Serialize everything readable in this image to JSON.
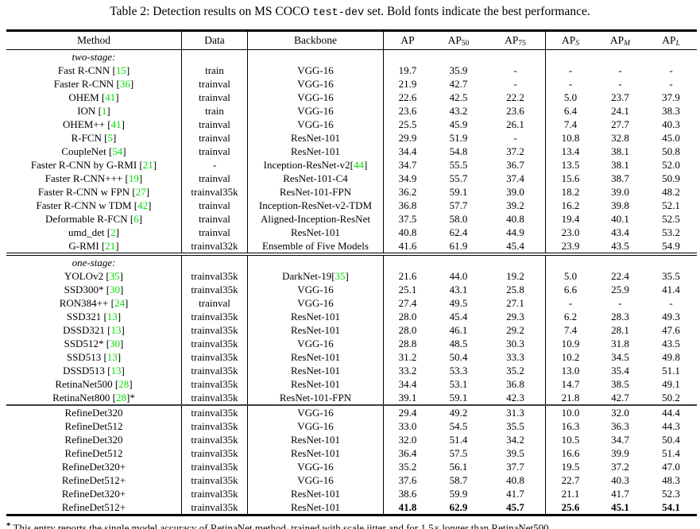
{
  "title": {
    "prefix": "Table 2: Detection results on MS COCO ",
    "code": "test-dev",
    "suffix": " set. Bold fonts indicate the best performance."
  },
  "accent_colors": {
    "citation_green": "#00DD00"
  },
  "table": {
    "columns": [
      {
        "label": "Method"
      },
      {
        "label": "Data"
      },
      {
        "label": "Backbone"
      },
      {
        "label": "AP"
      },
      {
        "label": "AP",
        "sub": "50"
      },
      {
        "label": "AP",
        "sub": "75"
      },
      {
        "label": "AP",
        "sub": "S",
        "italic_sub": true
      },
      {
        "label": "AP",
        "sub": "M",
        "italic_sub": true
      },
      {
        "label": "AP",
        "sub": "L",
        "italic_sub": true
      }
    ],
    "sections": [
      {
        "label": "two-stage:",
        "separator": "none",
        "rows": [
          {
            "method": "Fast R-CNN",
            "cite": "15",
            "data": "train",
            "backbone": "VGG-16",
            "values": [
              "19.7",
              "35.9",
              "-",
              "-",
              "-",
              "-"
            ]
          },
          {
            "method": "Faster R-CNN",
            "cite": "36",
            "data": "trainval",
            "backbone": "VGG-16",
            "values": [
              "21.9",
              "42.7",
              "-",
              "-",
              "-",
              "-"
            ]
          },
          {
            "method": "OHEM",
            "cite": "41",
            "data": "trainval",
            "backbone": "VGG-16",
            "values": [
              "22.6",
              "42.5",
              "22.2",
              "5.0",
              "23.7",
              "37.9"
            ]
          },
          {
            "method": "ION",
            "cite": "1",
            "data": "train",
            "backbone": "VGG-16",
            "values": [
              "23.6",
              "43.2",
              "23.6",
              "6.4",
              "24.1",
              "38.3"
            ]
          },
          {
            "method": "OHEM++",
            "cite": "41",
            "data": "trainval",
            "backbone": "VGG-16",
            "values": [
              "25.5",
              "45.9",
              "26.1",
              "7.4",
              "27.7",
              "40.3"
            ]
          },
          {
            "method": "R-FCN",
            "cite": "5",
            "data": "trainval",
            "backbone": "ResNet-101",
            "values": [
              "29.9",
              "51.9",
              "-",
              "10.8",
              "32.8",
              "45.0"
            ]
          },
          {
            "method": "CoupleNet",
            "cite": "54",
            "data": "trainval",
            "backbone": "ResNet-101",
            "values": [
              "34.4",
              "54.8",
              "37.2",
              "13.4",
              "38.1",
              "50.8"
            ]
          },
          {
            "method": "Faster R-CNN by G-RMI",
            "cite": "21",
            "data": "-",
            "backbone": "Inception-ResNet-v2",
            "backbone_cite": "44",
            "values": [
              "34.7",
              "55.5",
              "36.7",
              "13.5",
              "38.1",
              "52.0"
            ]
          },
          {
            "method": "Faster R-CNN+++",
            "cite": "19",
            "data": "trainval",
            "backbone": "ResNet-101-C4",
            "values": [
              "34.9",
              "55.7",
              "37.4",
              "15.6",
              "38.7",
              "50.9"
            ]
          },
          {
            "method": "Faster R-CNN w FPN",
            "cite": "27",
            "data": "trainval35k",
            "backbone": "ResNet-101-FPN",
            "values": [
              "36.2",
              "59.1",
              "39.0",
              "18.2",
              "39.0",
              "48.2"
            ]
          },
          {
            "method": "Faster R-CNN w TDM",
            "cite": "42",
            "data": "trainval",
            "backbone": "Inception-ResNet-v2-TDM",
            "values": [
              "36.8",
              "57.7",
              "39.2",
              "16.2",
              "39.8",
              "52.1"
            ]
          },
          {
            "method": "Deformable R-FCN",
            "cite": "6",
            "data": "trainval",
            "backbone": "Aligned-Inception-ResNet",
            "values": [
              "37.5",
              "58.0",
              "40.8",
              "19.4",
              "40.1",
              "52.5"
            ]
          },
          {
            "method": "umd_det",
            "cite": "2",
            "data": "trainval",
            "backbone": "ResNet-101",
            "values": [
              "40.8",
              "62.4",
              "44.9",
              "23.0",
              "43.4",
              "53.2"
            ]
          },
          {
            "method": "G-RMI",
            "cite": "21",
            "data": "trainval32k",
            "backbone": "Ensemble of Five Models",
            "values": [
              "41.6",
              "61.9",
              "45.4",
              "23.9",
              "43.5",
              "54.9"
            ]
          }
        ]
      },
      {
        "label": "one-stage:",
        "separator": "double",
        "rows": [
          {
            "method": "YOLOv2",
            "cite": "35",
            "data": "trainval35k",
            "backbone": "DarkNet-19",
            "backbone_cite": "35",
            "values": [
              "21.6",
              "44.0",
              "19.2",
              "5.0",
              "22.4",
              "35.5"
            ]
          },
          {
            "method": "SSD300*",
            "cite": "30",
            "data": "trainval35k",
            "backbone": "VGG-16",
            "values": [
              "25.1",
              "43.1",
              "25.8",
              "6.6",
              "25.9",
              "41.4"
            ]
          },
          {
            "method": "RON384++",
            "cite": "24",
            "data": "trainval",
            "backbone": "VGG-16",
            "values": [
              "27.4",
              "49.5",
              "27.1",
              "-",
              "-",
              "-"
            ]
          },
          {
            "method": "SSD321",
            "cite": "13",
            "data": "trainval35k",
            "backbone": "ResNet-101",
            "values": [
              "28.0",
              "45.4",
              "29.3",
              "6.2",
              "28.3",
              "49.3"
            ]
          },
          {
            "method": "DSSD321",
            "cite": "13",
            "data": "trainval35k",
            "backbone": "ResNet-101",
            "values": [
              "28.0",
              "46.1",
              "29.2",
              "7.4",
              "28.1",
              "47.6"
            ]
          },
          {
            "method": "SSD512*",
            "cite": "30",
            "data": "trainval35k",
            "backbone": "VGG-16",
            "values": [
              "28.8",
              "48.5",
              "30.3",
              "10.9",
              "31.8",
              "43.5"
            ]
          },
          {
            "method": "SSD513",
            "cite": "13",
            "data": "trainval35k",
            "backbone": "ResNet-101",
            "values": [
              "31.2",
              "50.4",
              "33.3",
              "10.2",
              "34.5",
              "49.8"
            ]
          },
          {
            "method": "DSSD513",
            "cite": "13",
            "data": "trainval35k",
            "backbone": "ResNet-101",
            "values": [
              "33.2",
              "53.3",
              "35.2",
              "13.0",
              "35.4",
              "51.1"
            ]
          },
          {
            "method": "RetinaNet500",
            "cite": "28",
            "data": "trainval35k",
            "backbone": "ResNet-101",
            "values": [
              "34.4",
              "53.1",
              "36.8",
              "14.7",
              "38.5",
              "49.1"
            ]
          },
          {
            "method": "RetinaNet800",
            "cite": "28",
            "star": true,
            "data": "trainval35k",
            "backbone": "ResNet-101-FPN",
            "values": [
              "39.1",
              "59.1",
              "42.3",
              "21.8",
              "42.7",
              "50.2"
            ]
          }
        ]
      },
      {
        "label": null,
        "separator": "single",
        "rows": [
          {
            "method": "RefineDet320",
            "data": "trainval35k",
            "backbone": "VGG-16",
            "values": [
              "29.4",
              "49.2",
              "31.3",
              "10.0",
              "32.0",
              "44.4"
            ]
          },
          {
            "method": "RefineDet512",
            "data": "trainval35k",
            "backbone": "VGG-16",
            "values": [
              "33.0",
              "54.5",
              "35.5",
              "16.3",
              "36.3",
              "44.3"
            ]
          },
          {
            "method": "RefineDet320",
            "data": "trainval35k",
            "backbone": "ResNet-101",
            "values": [
              "32.0",
              "51.4",
              "34.2",
              "10.5",
              "34.7",
              "50.4"
            ]
          },
          {
            "method": "RefineDet512",
            "data": "trainval35k",
            "backbone": "ResNet-101",
            "values": [
              "36.4",
              "57.5",
              "39.5",
              "16.6",
              "39.9",
              "51.4"
            ]
          },
          {
            "method": "RefineDet320+",
            "data": "trainval35k",
            "backbone": "VGG-16",
            "values": [
              "35.2",
              "56.1",
              "37.7",
              "19.5",
              "37.2",
              "47.0"
            ]
          },
          {
            "method": "RefineDet512+",
            "data": "trainval35k",
            "backbone": "VGG-16",
            "values": [
              "37.6",
              "58.7",
              "40.8",
              "22.7",
              "40.3",
              "48.3"
            ]
          },
          {
            "method": "RefineDet320+",
            "data": "trainval35k",
            "backbone": "ResNet-101",
            "values": [
              "38.6",
              "59.9",
              "41.7",
              "21.1",
              "41.7",
              "52.3"
            ]
          },
          {
            "method": "RefineDet512+",
            "data": "trainval35k",
            "backbone": "ResNet-101",
            "values": [
              "41.8",
              "62.9",
              "45.7",
              "25.6",
              "45.1",
              "54.1"
            ],
            "bold": true
          }
        ]
      }
    ]
  },
  "footnote": {
    "star": "*",
    "text": "This entry reports the single model accuracy of RetinaNet method, trained with scale jitter and for 1.5× longer than RetinaNet500."
  }
}
